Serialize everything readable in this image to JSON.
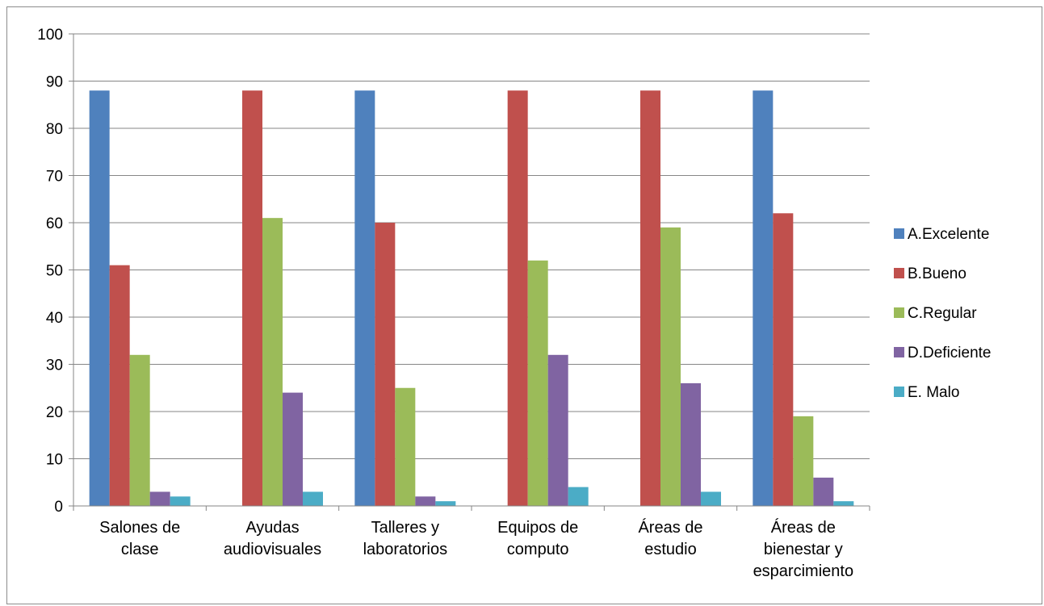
{
  "chart_data": {
    "type": "bar",
    "title": "",
    "xlabel": "",
    "ylabel": "",
    "ylim": [
      0,
      100
    ],
    "yticks": [
      0,
      10,
      20,
      30,
      40,
      50,
      60,
      70,
      80,
      90,
      100
    ],
    "grid": true,
    "legend_position": "right",
    "categories": [
      [
        "Salones de",
        "clase"
      ],
      [
        "Ayudas",
        "audiovisuales"
      ],
      [
        "Talleres y",
        "laboratorios"
      ],
      [
        "Equipos de",
        "computo"
      ],
      [
        "Áreas de",
        "estudio"
      ],
      [
        "Áreas de",
        "bienestar y",
        "esparcimiento"
      ]
    ],
    "series": [
      {
        "name": "A.Excelente",
        "color": "#4f81bd",
        "values": [
          88,
          0,
          88,
          0,
          0,
          88
        ]
      },
      {
        "name": "B.Bueno",
        "color": "#c0504d",
        "values": [
          51,
          88,
          60,
          88,
          88,
          62
        ]
      },
      {
        "name": "C.Regular",
        "color": "#9bbb59",
        "values": [
          32,
          61,
          25,
          52,
          59,
          19
        ]
      },
      {
        "name": "D.Deficiente",
        "color": "#8064a2",
        "values": [
          3,
          24,
          2,
          32,
          26,
          6
        ]
      },
      {
        "name": "E. Malo",
        "color": "#4bacc6",
        "values": [
          2,
          3,
          1,
          4,
          3,
          1
        ]
      }
    ]
  }
}
